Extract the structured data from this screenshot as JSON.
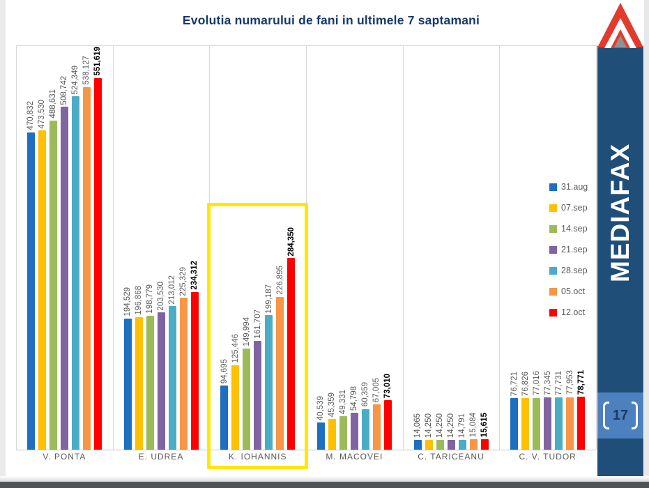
{
  "title": "Evolutia numarului de fani in ultimele 7 saptamani",
  "sidebar": {
    "brand": "MEDIAFAX",
    "page_number": "17",
    "column_color": "#1f4e79",
    "badge_color": "#4c80be",
    "logo_red": "#e23b2e",
    "logo_gray": "#8f9193"
  },
  "colors": {
    "title_navy": "#17376e",
    "label_gray": "#595959",
    "gridline": "#d9d9d9",
    "highlight_yellow": "#ffe800"
  },
  "chart_data": {
    "type": "bar",
    "title": "Evolutia numarului de fani in ultimele 7 saptamani",
    "categories": [
      "V. PONTA",
      "E. UDREA",
      "K. IOHANNIS",
      "M. MACOVEI",
      "C. TARICEANU",
      "C. V. TUDOR"
    ],
    "series": [
      {
        "name": "31.aug",
        "color": "#1e6fc0",
        "values": [
          470832,
          194529,
          94695,
          40539,
          14065,
          76721
        ]
      },
      {
        "name": "07.sep",
        "color": "#ffc000",
        "values": [
          473530,
          196868,
          125446,
          45359,
          14250,
          76826
        ]
      },
      {
        "name": "14.sep",
        "color": "#9bbb59",
        "values": [
          488631,
          198779,
          149994,
          49331,
          14250,
          77016
        ]
      },
      {
        "name": "21.sep",
        "color": "#8064a2",
        "values": [
          508742,
          203530,
          161707,
          54798,
          14250,
          77345
        ]
      },
      {
        "name": "28.sep",
        "color": "#4bacc6",
        "values": [
          524349,
          213012,
          199187,
          60359,
          14791,
          77731
        ]
      },
      {
        "name": "05.oct",
        "color": "#f79646",
        "values": [
          538127,
          225329,
          226895,
          67005,
          15084,
          77953
        ]
      },
      {
        "name": "12.oct",
        "color": "#ff0000",
        "values": [
          551619,
          234312,
          284350,
          73010,
          15615,
          78771
        ]
      }
    ],
    "ylim": [
      0,
      600000
    ],
    "xlabel": "",
    "ylabel": "",
    "grid": "vertical category separators only",
    "legend_position": "right",
    "value_labels": "rotated 90deg above each bar, thousands separated by comma, last series bold black",
    "highlighted_category": "K. IOHANNIS"
  }
}
